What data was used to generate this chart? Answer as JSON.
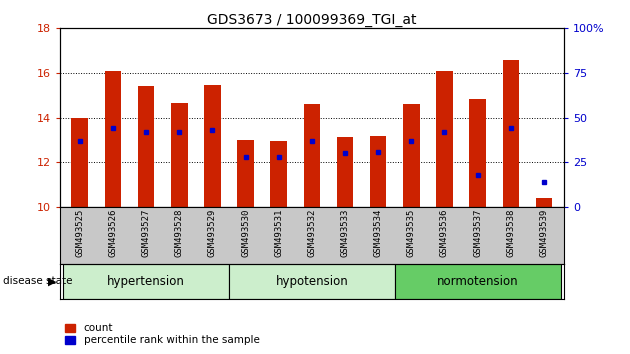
{
  "title": "GDS3673 / 100099369_TGI_at",
  "samples": [
    "GSM493525",
    "GSM493526",
    "GSM493527",
    "GSM493528",
    "GSM493529",
    "GSM493530",
    "GSM493531",
    "GSM493532",
    "GSM493533",
    "GSM493534",
    "GSM493535",
    "GSM493536",
    "GSM493537",
    "GSM493538",
    "GSM493539"
  ],
  "bar_tops": [
    14.0,
    16.1,
    15.4,
    14.65,
    15.45,
    13.0,
    12.95,
    14.6,
    13.15,
    13.2,
    14.6,
    16.1,
    14.85,
    16.6,
    10.4
  ],
  "bar_base": 10.0,
  "blue_pct": [
    37,
    44,
    42,
    42,
    43,
    28,
    28,
    37,
    30,
    31,
    37,
    42,
    18,
    44,
    14
  ],
  "ylim_left": [
    10,
    18
  ],
  "ylim_right": [
    0,
    100
  ],
  "yticks_left": [
    10,
    12,
    14,
    16,
    18
  ],
  "yticks_right": [
    0,
    25,
    50,
    75,
    100
  ],
  "bar_color": "#CC2200",
  "blue_color": "#0000CC",
  "bar_width": 0.5,
  "tick_label_color_left": "#CC2200",
  "tick_label_color_right": "#0000CC",
  "xlabel_area_color": "#C8C8C8",
  "hyper_color": "#CCEECC",
  "hypo_color": "#CCEECC",
  "normo_color": "#66CC66",
  "legend_count_color": "#CC2200",
  "legend_pct_color": "#0000CC"
}
